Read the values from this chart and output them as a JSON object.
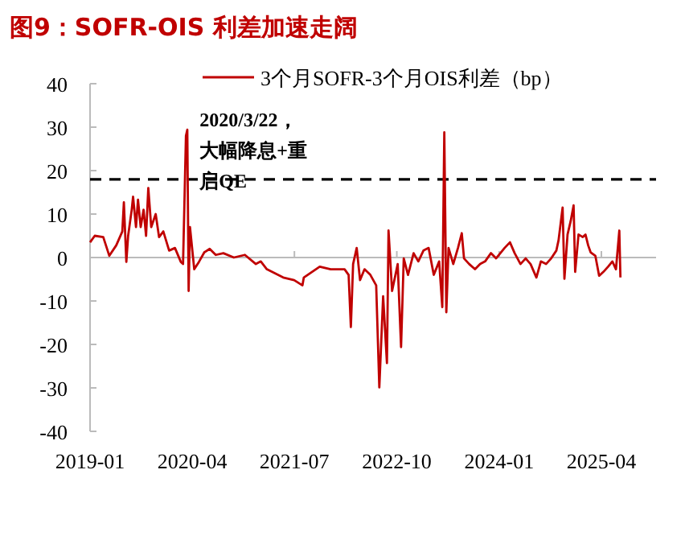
{
  "chart_data": {
    "type": "line",
    "title": "图9：SOFR-OIS 利差加速走阔",
    "xlim": [
      "2019-01-01",
      "2025-12-01"
    ],
    "xticks": [
      "2019-01",
      "2020-04",
      "2021-07",
      "2022-10",
      "2024-01",
      "2025-04"
    ],
    "ylim": [
      -40,
      40
    ],
    "yticks": [
      -40,
      -30,
      -20,
      -10,
      0,
      10,
      20,
      30,
      40
    ],
    "legend": "top",
    "marker": "none",
    "line_style": "solid",
    "ref_lines": [
      {
        "axis": "y",
        "value": 18,
        "color": "#000000",
        "line_style": "dashed"
      }
    ],
    "annotations": [
      {
        "text": "2020/3/22，大幅降息+重启QE",
        "x": "2020-03-22",
        "y": 29.4
      }
    ],
    "series": [
      {
        "name": "3个月SOFR-3个月OIS利差（bp）",
        "color": "#c00000",
        "x": [
          "2019-01-01",
          "2019-01-22",
          "2019-03-01",
          "2019-03-28",
          "2019-04-28",
          "2019-05-25",
          "2019-06-01",
          "2019-06-12",
          "2019-06-20",
          "2019-07-06",
          "2019-07-12",
          "2019-07-25",
          "2019-08-03",
          "2019-08-15",
          "2019-08-28",
          "2019-09-08",
          "2019-09-18",
          "2019-10-01",
          "2019-10-21",
          "2019-11-05",
          "2019-11-24",
          "2019-12-20",
          "2020-01-15",
          "2020-02-10",
          "2020-02-20",
          "2020-03-04",
          "2020-03-10",
          "2020-03-16",
          "2020-03-22",
          "2020-04-10",
          "2020-05-01",
          "2020-05-25",
          "2020-06-18",
          "2020-07-15",
          "2020-08-18",
          "2020-10-04",
          "2020-11-22",
          "2021-01-10",
          "2021-02-01",
          "2021-02-28",
          "2021-05-12",
          "2021-06-30",
          "2021-08-06",
          "2021-08-12",
          "2021-10-22",
          "2021-12-10",
          "2022-02-10",
          "2022-02-28",
          "2022-03-10",
          "2022-03-20",
          "2022-04-05",
          "2022-04-20",
          "2022-05-10",
          "2022-06-05",
          "2022-07-01",
          "2022-07-15",
          "2022-08-01",
          "2022-08-18",
          "2022-08-25",
          "2022-09-10",
          "2022-10-05",
          "2022-10-20",
          "2022-11-01",
          "2022-11-20",
          "2022-12-15",
          "2023-01-05",
          "2023-01-28",
          "2023-02-20",
          "2023-03-15",
          "2023-04-08",
          "2023-04-22",
          "2023-05-01",
          "2023-05-10",
          "2023-05-20",
          "2023-06-10",
          "2023-07-01",
          "2023-07-18",
          "2023-07-28",
          "2023-08-20",
          "2023-09-15",
          "2023-10-08",
          "2023-10-30",
          "2023-11-25",
          "2023-12-18",
          "2024-01-25",
          "2024-02-18",
          "2024-03-10",
          "2024-04-05",
          "2024-04-28",
          "2024-05-20",
          "2024-06-15",
          "2024-07-05",
          "2024-07-28",
          "2024-08-20",
          "2024-09-12",
          "2024-09-22",
          "2024-10-10",
          "2024-10-18",
          "2024-11-01",
          "2024-11-15",
          "2024-11-28",
          "2024-12-05",
          "2024-12-20",
          "2025-01-08",
          "2025-01-20",
          "2025-02-01",
          "2025-02-12",
          "2025-03-05",
          "2025-03-22",
          "2025-04-10",
          "2025-05-01",
          "2025-05-20",
          "2025-06-05",
          "2025-06-20",
          "2025-06-25"
        ],
        "values": [
          3.5,
          5,
          4.7,
          0.4,
          2.8,
          6,
          12.7,
          -1,
          5,
          11,
          14,
          7,
          13.3,
          7,
          11,
          5,
          16,
          7,
          10,
          4.7,
          6,
          1.6,
          2.2,
          -1,
          -1.5,
          28,
          29.4,
          -7.7,
          7,
          -2.7,
          -1,
          1.2,
          2,
          0.6,
          1,
          0,
          0.6,
          -1.5,
          -0.9,
          -2.7,
          -4.6,
          -5.2,
          -6.4,
          -4.6,
          -2.1,
          -2.7,
          -2.7,
          -4,
          -16,
          -1.5,
          2.2,
          -5.2,
          -2.7,
          -4,
          -6.4,
          -29.9,
          -8.9,
          -24.3,
          6.2,
          -7.7,
          -1.5,
          -20.6,
          -0.2,
          -4,
          1,
          -0.9,
          1.6,
          2.2,
          -4,
          -0.9,
          -11.4,
          28.8,
          -12.6,
          2.2,
          -1.5,
          2.2,
          5.6,
          -0.2,
          -1.5,
          -2.7,
          -1.5,
          -0.9,
          1,
          -0.2,
          2.2,
          3.5,
          1,
          -1.5,
          -0.2,
          -1.5,
          -4.6,
          -0.9,
          -1.5,
          -0.2,
          1.6,
          4,
          11.5,
          -4.9,
          5.3,
          8.4,
          12,
          -3.3,
          5.3,
          4.7,
          5.3,
          2.8,
          1.2,
          0.4,
          -4.2,
          -3.3,
          -2.1,
          -0.9,
          -2.7,
          6.2,
          -4.6
        ]
      }
    ]
  }
}
